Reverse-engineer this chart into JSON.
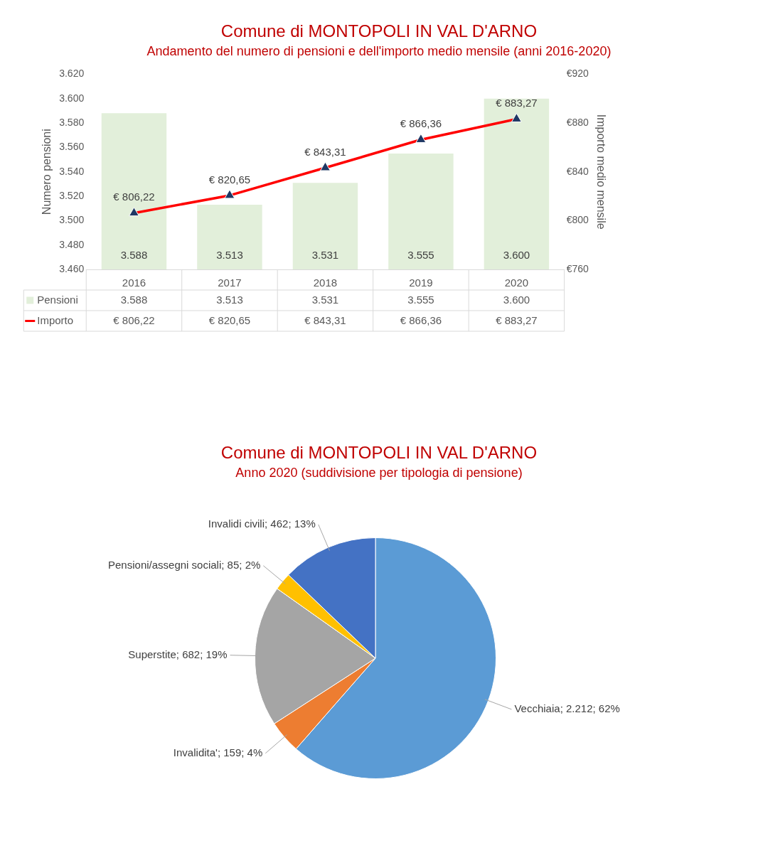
{
  "chart_data": [
    {
      "type": "bar",
      "title": "Comune di MONTOPOLI IN VAL D'ARNO",
      "subtitle": "Andamento del numero di pensioni e dell'importo medio mensile (anni 2016-2020)",
      "ylabel": "Numero pensioni",
      "y2label": "Importo medio mensile",
      "categories": [
        "2016",
        "2017",
        "2018",
        "2019",
        "2020"
      ],
      "series": [
        {
          "name": "Pensioni",
          "type": "bar",
          "color": "#e2efda",
          "values": [
            3588,
            3513,
            3531,
            3555,
            3600
          ],
          "value_labels": [
            "3.588",
            "3.513",
            "3.531",
            "3.555",
            "3.600"
          ]
        },
        {
          "name": "Importo",
          "type": "line",
          "axis": "y2",
          "color": "#ff0000",
          "marker": "triangle",
          "values": [
            806.22,
            820.65,
            843.31,
            866.36,
            883.27
          ],
          "value_labels": [
            "€ 806,22",
            "€ 820,65",
            "€ 843,31",
            "€ 866,36",
            "€ 883,27"
          ]
        }
      ],
      "ylim": [
        3460,
        3620
      ],
      "yticks": [
        {
          "value": 3460,
          "label": "3.460"
        },
        {
          "value": 3480,
          "label": "3.480"
        },
        {
          "value": 3500,
          "label": "3.500"
        },
        {
          "value": 3520,
          "label": "3.520"
        },
        {
          "value": 3540,
          "label": "3.540"
        },
        {
          "value": 3560,
          "label": "3.560"
        },
        {
          "value": 3580,
          "label": "3.580"
        },
        {
          "value": 3600,
          "label": "3.600"
        },
        {
          "value": 3620,
          "label": "3.620"
        }
      ],
      "y2lim": [
        760,
        920
      ],
      "y2ticks": [
        {
          "value": 760,
          "label": "€760"
        },
        {
          "value": 800,
          "label": "€800"
        },
        {
          "value": 840,
          "label": "€840"
        },
        {
          "value": 880,
          "label": "€880"
        },
        {
          "value": 920,
          "label": "€920"
        }
      ],
      "grid": false,
      "legend": "bottom left"
    },
    {
      "type": "pie",
      "title": "Comune di MONTOPOLI IN VAL D'ARNO",
      "subtitle": "Anno 2020 (suddivisione per tipologia di pensione)",
      "categories": [
        "Vecchiaia",
        "Invalidita'",
        "Superstite",
        "Pensioni/assegni sociali",
        "Invalidi civili"
      ],
      "values": [
        2212,
        159,
        682,
        85,
        462
      ],
      "value_labels": [
        "2.212; 62%",
        "159; 4%",
        "682; 19%",
        "85; 2%",
        "462; 13%"
      ],
      "colors": [
        "#5b9bd5",
        "#ed7d31",
        "#a5a5a5",
        "#ffc000",
        "#4472c4"
      ],
      "legend": false
    }
  ]
}
